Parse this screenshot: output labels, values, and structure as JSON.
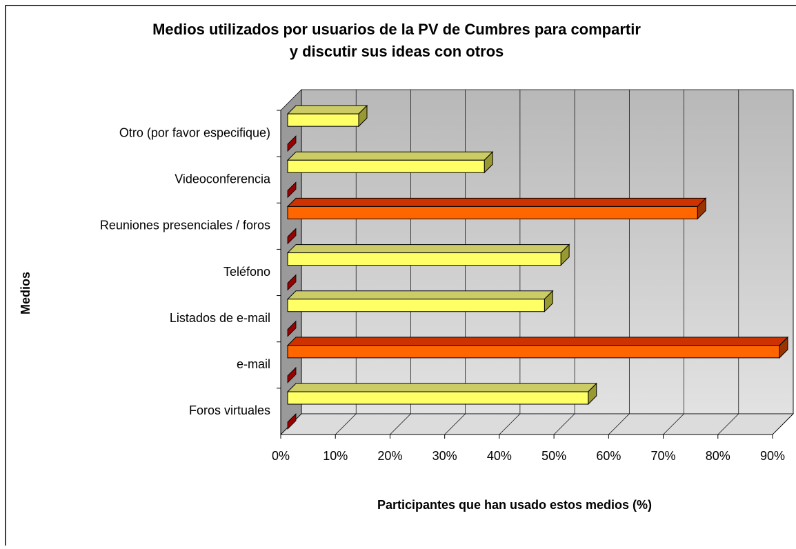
{
  "chart_data": {
    "type": "bar3d_horizontal",
    "title": [
      "Medios utilizados por usuarios de la PV de Cumbres para compartir",
      "y discutir sus ideas con otros"
    ],
    "x_label": "Participantes que han usado estos medios (%)",
    "y_label": "Medios",
    "categories": [
      "Foros virtuales",
      "e-mail",
      "Listados de e-mail",
      "Teléfono",
      "Reuniones presenciales / foros",
      "Videoconferencia",
      "Otro (por favor especifique)"
    ],
    "series": [
      {
        "values": [
          55,
          90,
          47,
          50,
          75,
          36,
          13
        ],
        "colors": [
          "#ffff66",
          "#ff6600",
          "#ffff66",
          "#ffff66",
          "#ff6600",
          "#ffff66",
          "#ffff66"
        ]
      },
      {
        "values": [
          0,
          0,
          0,
          0,
          0,
          0,
          0
        ],
        "color": "#990000"
      }
    ],
    "xlim": [
      0,
      90
    ],
    "xticks": [
      {
        "value": 0,
        "label": "0%"
      },
      {
        "value": 10,
        "label": "10%"
      },
      {
        "value": 20,
        "label": "20%"
      },
      {
        "value": 30,
        "label": "30%"
      },
      {
        "value": 40,
        "label": "40%"
      },
      {
        "value": 50,
        "label": "50%"
      },
      {
        "value": 60,
        "label": "60%"
      },
      {
        "value": 70,
        "label": "70%"
      },
      {
        "value": 80,
        "label": "80%"
      },
      {
        "value": 90,
        "label": "90%"
      }
    ],
    "grid": true
  }
}
